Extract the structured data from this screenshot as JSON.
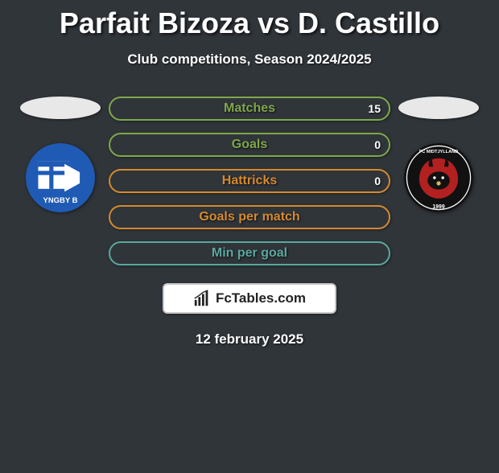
{
  "title": "Parfait Bizoza vs D. Castillo",
  "subtitle": "Club competitions, Season 2024/2025",
  "date": "12 february 2025",
  "branding": {
    "text": "FcTables.com"
  },
  "colors": {
    "green": "#7fa84b",
    "orange": "#d68a2e",
    "teal": "#5aa89e",
    "background": "#30353a"
  },
  "left_team": {
    "crest_bg": "#1f5bb5",
    "crest_accent": "#ffffff",
    "crest_text": "YNGBY B"
  },
  "right_team": {
    "crest_bg": "#111111",
    "crest_accent": "#b22020",
    "crest_text": "FC MIDTJYLLAND",
    "crest_year": "1999"
  },
  "bars": [
    {
      "label": "Matches",
      "left": "",
      "right": "15",
      "color": "green"
    },
    {
      "label": "Goals",
      "left": "",
      "right": "0",
      "color": "green"
    },
    {
      "label": "Hattricks",
      "left": "",
      "right": "0",
      "color": "orange"
    },
    {
      "label": "Goals per match",
      "left": "",
      "right": "",
      "color": "orange"
    },
    {
      "label": "Min per goal",
      "left": "",
      "right": "",
      "color": "teal"
    }
  ]
}
